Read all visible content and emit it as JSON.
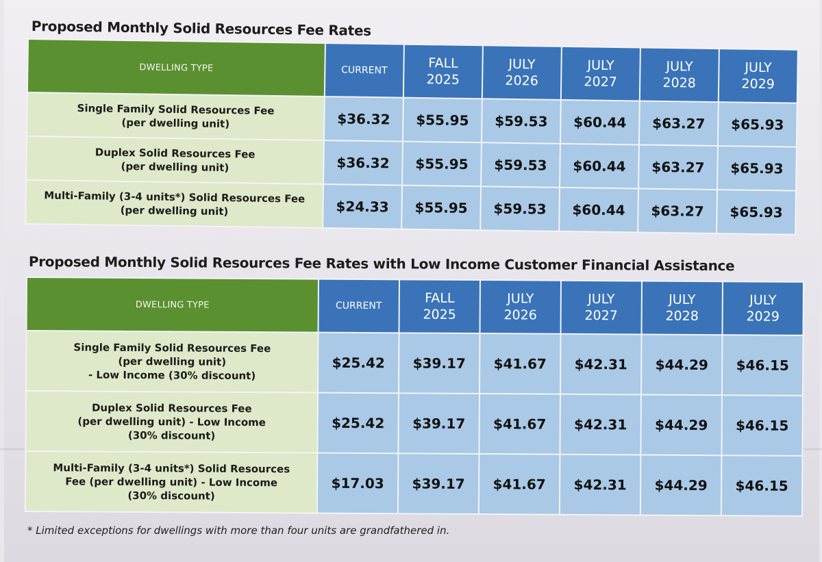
{
  "table1": {
    "title": "Proposed Monthly Solid Resources Fee Rates",
    "dwelling_header": "DWELLING TYPE",
    "columns": [
      "CURRENT",
      "FALL\n2025",
      "JULY\n2026",
      "JULY\n2027",
      "JULY\n2028",
      "JULY\n2029"
    ],
    "rows": [
      {
        "label": "Single Family Solid Resources Fee\n(per dwelling unit)",
        "values": [
          "$36.32",
          "$55.95",
          "$59.53",
          "$60.44",
          "$63.27",
          "$65.93"
        ]
      },
      {
        "label": "Duplex Solid Resources Fee\n(per dwelling unit)",
        "values": [
          "$36.32",
          "$55.95",
          "$59.53",
          "$60.44",
          "$63.27",
          "$65.93"
        ]
      },
      {
        "label": "Multi-Family (3-4 units*) Solid Resources Fee\n(per dwelling unit)",
        "values": [
          "$24.33",
          "$55.95",
          "$59.53",
          "$60.44",
          "$63.27",
          "$65.93"
        ]
      }
    ]
  },
  "table2": {
    "title": "Proposed Monthly Solid Resources Fee Rates with Low Income Customer Financial Assistance",
    "dwelling_header": "DWELLING TYPE",
    "columns": [
      "CURRENT",
      "FALL\n2025",
      "JULY\n2026",
      "JULY\n2027",
      "JULY\n2028",
      "JULY\n2029"
    ],
    "rows": [
      {
        "label": "Single Family Solid Resources Fee\n(per dwelling unit)\n- Low Income (30% discount)",
        "values": [
          "$25.42",
          "$39.17",
          "$41.67",
          "$42.31",
          "$44.29",
          "$46.15"
        ]
      },
      {
        "label": "Duplex Solid Resources Fee\n(per dwelling unit) - Low Income\n(30% discount)",
        "values": [
          "$25.42",
          "$39.17",
          "$41.67",
          "$42.31",
          "$44.29",
          "$46.15"
        ]
      },
      {
        "label": "Multi-Family (3-4 units*) Solid Resources\nFee (per dwelling unit) - Low Income\n(30% discount)",
        "values": [
          "$17.03",
          "$39.17",
          "$41.67",
          "$42.31",
          "$44.29",
          "$46.15"
        ]
      }
    ]
  },
  "footnote": "* Limited exceptions for dwellings with more than four units are grandfathered in.",
  "colors": {
    "dwelling_header_green": "#5b9031",
    "dwelling_cell_green": "#dde9c8",
    "column_header_blue": "#3a73b8",
    "value_cell_blue": "#a9c9e6"
  }
}
